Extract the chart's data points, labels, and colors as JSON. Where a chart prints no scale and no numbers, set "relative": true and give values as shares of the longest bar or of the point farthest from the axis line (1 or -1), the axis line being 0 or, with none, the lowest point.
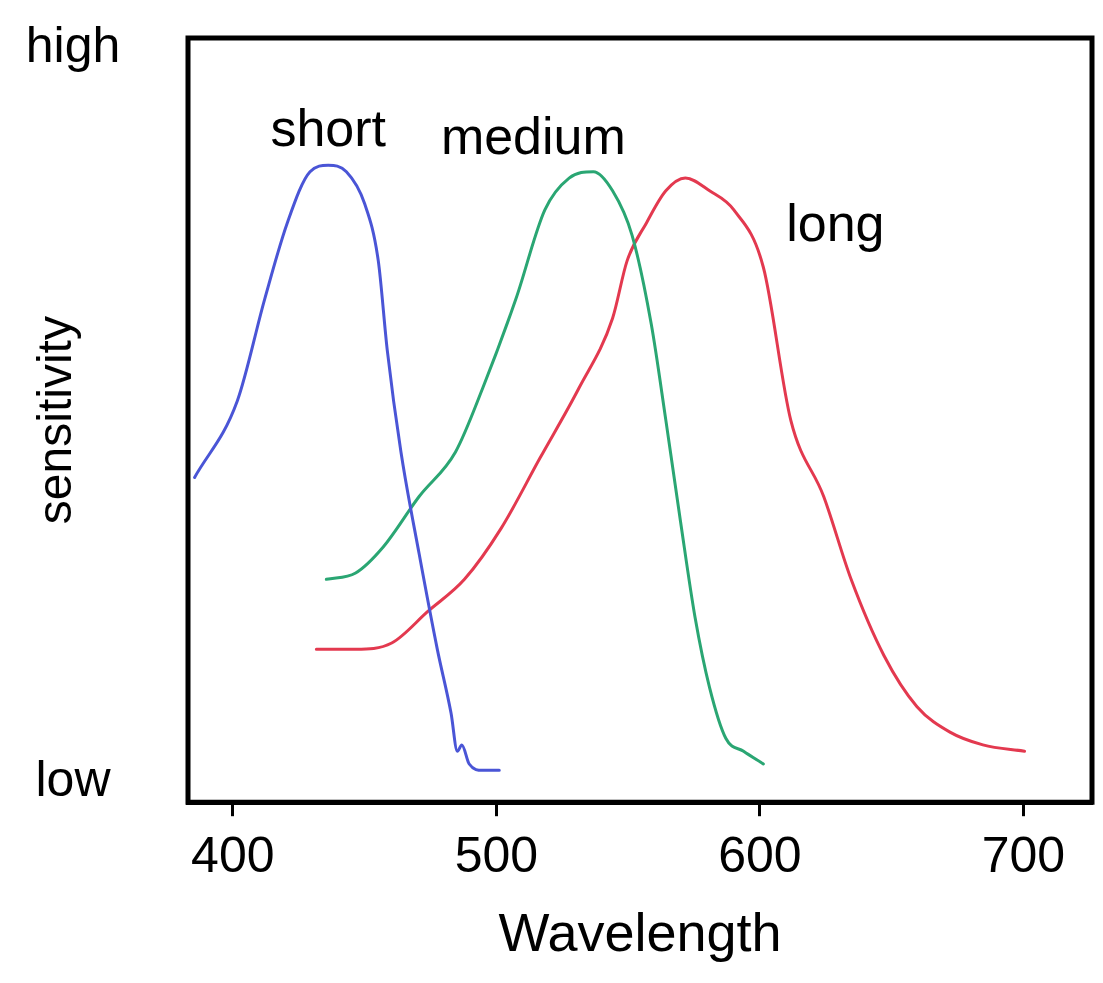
{
  "chart_data": {
    "type": "line",
    "xlabel": "Wavelength",
    "ylabel": "sensitivity",
    "relative": true,
    "annotations": [
      "high",
      "low"
    ],
    "xlim": [
      383,
      726
    ],
    "xticks": [
      400,
      500,
      600,
      700
    ],
    "grid": false,
    "legend": false,
    "marker": "none",
    "line_style": "solid",
    "series": [
      {
        "name": "short",
        "color": "#4a55d6",
        "x": [
          385.5,
          401.7,
          412.1,
          420.7,
          429.3,
          436.2,
          443.1,
          450,
          455.2,
          458.6,
          463.8,
          470.7,
          477.6,
          482.8,
          485.2,
          486.9,
          489.7,
          494.8,
          501.1
        ],
        "values": [
          0.51,
          0.63,
          0.79,
          0.91,
          0.99,
          1,
          0.99,
          0.94,
          0.85,
          0.71,
          0.55,
          0.39,
          0.24,
          0.14,
          0.08,
          0.09,
          0.06,
          0.05,
          0.05
        ]
      },
      {
        "name": "medium",
        "color": "#2aa673",
        "x": [
          435.5,
          446.6,
          456.9,
          470.7,
          484.5,
          494.8,
          507.4,
          518.4,
          527.6,
          536.8,
          544.1,
          551.5,
          558.8,
          564.3,
          569.9,
          575.4,
          580.9,
          587.1,
          593.8,
          601.3
        ],
        "values": [
          0.35,
          0.36,
          0.4,
          0.48,
          0.55,
          0.65,
          0.79,
          0.93,
          0.98,
          0.99,
          0.96,
          0.89,
          0.75,
          0.6,
          0.44,
          0.29,
          0.18,
          0.1,
          0.08,
          0.06
        ]
      },
      {
        "name": "long",
        "color": "#e3394f",
        "x": [
          431.7,
          446.6,
          460.3,
          474.1,
          487.9,
          501.8,
          516.5,
          531.3,
          544.1,
          549.6,
          557,
          564.3,
          571.7,
          580.9,
          590.1,
          601.3,
          611.7,
          624.2,
          634.6,
          647.1,
          659.6,
          672.1,
          684.6,
          700.4
        ],
        "values": [
          0.24,
          0.24,
          0.25,
          0.3,
          0.35,
          0.43,
          0.54,
          0.65,
          0.76,
          0.85,
          0.91,
          0.96,
          0.98,
          0.96,
          0.93,
          0.84,
          0.6,
          0.48,
          0.35,
          0.23,
          0.15,
          0.11,
          0.09,
          0.08
        ]
      }
    ]
  }
}
